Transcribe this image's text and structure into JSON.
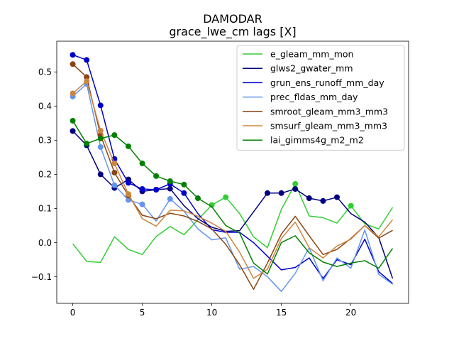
{
  "chart_data": {
    "type": "line",
    "title": "DAMODAR",
    "subtitle": "grace_lwe_cm lags [X]",
    "xlabel": "",
    "ylabel": "",
    "xlim": [
      -1.15,
      24.15
    ],
    "ylim": [
      -0.178,
      0.59
    ],
    "xticks": [
      0,
      5,
      10,
      15,
      20
    ],
    "yticks": [
      -0.1,
      0.0,
      0.1,
      0.2,
      0.3,
      0.4,
      0.5
    ],
    "ytick_labels": [
      "−0.1",
      "0.0",
      "0.1",
      "0.2",
      "0.3",
      "0.4",
      "0.5"
    ],
    "grid": false,
    "legend_position": "top-right",
    "x": [
      0,
      1,
      2,
      3,
      4,
      5,
      6,
      7,
      8,
      9,
      10,
      11,
      12,
      13,
      14,
      15,
      16,
      17,
      18,
      19,
      20,
      21,
      22,
      23
    ],
    "series": [
      {
        "name": "e_gleam_mm_mon",
        "color": "#32cd32",
        "values": [
          -0.003,
          -0.055,
          -0.058,
          0.017,
          -0.02,
          -0.035,
          0.018,
          0.047,
          0.023,
          0.067,
          0.11,
          0.133,
          0.085,
          0.017,
          -0.015,
          0.097,
          0.172,
          0.078,
          0.073,
          0.057,
          0.108,
          0.055,
          0.04,
          0.103
        ],
        "markers": [
          10,
          11,
          16,
          20
        ]
      },
      {
        "name": "glws2_gwater_mm",
        "color": "#000080",
        "values": [
          0.327,
          0.285,
          0.2,
          0.16,
          0.185,
          0.15,
          0.155,
          0.158,
          0.108,
          0.07,
          0.045,
          0.033,
          0.035,
          0.09,
          0.145,
          0.145,
          0.157,
          0.13,
          0.122,
          0.133,
          0.085,
          0.06,
          0.015,
          -0.105
        ],
        "markers": [
          0,
          1,
          2,
          3,
          4,
          5,
          6,
          7,
          14,
          15,
          16,
          17,
          18,
          19
        ]
      },
      {
        "name": "grun_ens_runoff_mm_day",
        "color": "#0000cd",
        "values": [
          0.55,
          0.535,
          0.402,
          0.245,
          0.175,
          0.157,
          0.155,
          0.172,
          0.145,
          0.085,
          0.038,
          0.03,
          0.03,
          0.0,
          -0.04,
          -0.08,
          -0.073,
          -0.045,
          -0.105,
          -0.05,
          -0.065,
          0.01,
          -0.085,
          -0.12
        ],
        "markers": [
          0,
          1,
          2,
          3,
          4,
          5,
          6,
          7,
          8
        ]
      },
      {
        "name": "prec_fldas_mm_day",
        "color": "#6495ed",
        "values": [
          0.428,
          0.465,
          0.28,
          0.168,
          0.125,
          0.112,
          0.063,
          0.128,
          0.092,
          0.04,
          0.008,
          0.014,
          -0.078,
          -0.07,
          -0.1,
          -0.143,
          -0.09,
          -0.015,
          -0.112,
          -0.045,
          -0.075,
          0.037,
          -0.093,
          -0.122
        ],
        "markers": [
          0,
          1,
          2,
          3,
          4,
          5,
          7
        ]
      },
      {
        "name": "smroot_gleam_mm3_mm3",
        "color": "#8b4513",
        "values": [
          0.523,
          0.485,
          0.315,
          0.205,
          0.138,
          0.08,
          0.07,
          0.086,
          0.078,
          0.062,
          0.04,
          -0.005,
          -0.065,
          -0.137,
          -0.06,
          0.025,
          0.077,
          0.02,
          -0.035,
          -0.02,
          0.012,
          0.05,
          0.013,
          0.036
        ],
        "markers": [
          0,
          1,
          2,
          3,
          4
        ]
      },
      {
        "name": "smsurf_gleam_mm3_mm3",
        "color": "#cd853f",
        "values": [
          0.437,
          0.473,
          0.328,
          0.232,
          0.142,
          0.07,
          0.048,
          0.095,
          0.093,
          0.077,
          0.057,
          0.033,
          -0.028,
          -0.105,
          -0.078,
          0.012,
          0.06,
          -0.015,
          -0.045,
          -0.01,
          0.01,
          0.05,
          0.017,
          0.067
        ],
        "markers": [
          0,
          1,
          2,
          3,
          4
        ]
      },
      {
        "name": "lai_gimms4g_m2_m2",
        "color": "#008000",
        "values": [
          0.357,
          0.29,
          0.305,
          0.315,
          0.282,
          0.232,
          0.195,
          0.18,
          0.17,
          0.13,
          0.105,
          0.05,
          0.028,
          -0.06,
          -0.092,
          0.0,
          0.02,
          -0.03,
          -0.057,
          -0.07,
          -0.06,
          -0.053,
          -0.075,
          -0.017
        ],
        "markers": [
          0,
          1,
          2,
          3,
          4,
          5,
          6,
          7,
          8,
          9
        ]
      }
    ]
  }
}
